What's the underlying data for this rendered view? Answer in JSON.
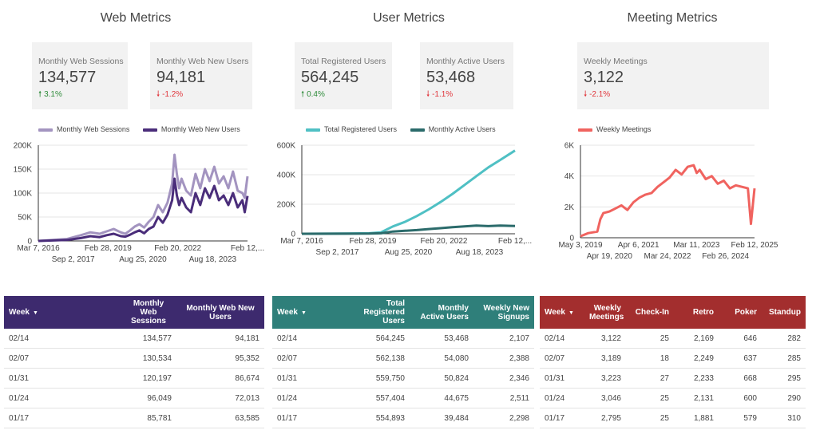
{
  "sections": {
    "web": {
      "title": "Web Metrics",
      "cards": [
        {
          "label": "Monthly Web Sessions",
          "value": "134,577",
          "delta": "3.1%",
          "dir": "up"
        },
        {
          "label": "Monthly Web New Users",
          "value": "94,181",
          "delta": "-1.2%",
          "dir": "down"
        }
      ],
      "legend": [
        "Monthly Web Sessions",
        "Monthly Web New Users"
      ]
    },
    "user": {
      "title": "User Metrics",
      "cards": [
        {
          "label": "Total Registered Users",
          "value": "564,245",
          "delta": "0.4%",
          "dir": "up"
        },
        {
          "label": "Monthly Active Users",
          "value": "53,468",
          "delta": "-1.1%",
          "dir": "down"
        }
      ],
      "legend": [
        "Total Registered Users",
        "Monthly Active Users"
      ]
    },
    "meeting": {
      "title": "Meeting Metrics",
      "cards": [
        {
          "label": "Weekly Meetings",
          "value": "3,122",
          "delta": "-2.1%",
          "dir": "down"
        }
      ],
      "legend": [
        "Weekly Meetings"
      ]
    }
  },
  "colors": {
    "web_sessions": "#a394c0",
    "web_new_users": "#4a2d7a",
    "registered": "#4fc0c4",
    "active": "#2b6b6b",
    "meetings": "#f0635f",
    "web_header": "#3d2a6e",
    "user_header": "#2f7f7a",
    "meeting_header": "#a32e2e"
  },
  "chart_data": [
    {
      "type": "line",
      "ylim": [
        0,
        200000
      ],
      "yticks": [
        "0",
        "50K",
        "100K",
        "150K",
        "200K"
      ],
      "xtick_top": [
        "Mar 7, 2016",
        "Feb 28, 2019",
        "Feb 20, 2022",
        "Feb 12,..."
      ],
      "xtick_bottom": [
        "Sep 2, 2017",
        "Aug 25, 2020",
        "Aug 18, 2023"
      ],
      "x_start": 2016.18,
      "x_end": 2025.12,
      "series": [
        {
          "name": "Monthly Web Sessions",
          "x": [
            2016.18,
            2016.8,
            2017.4,
            2017.7,
            2018.0,
            2018.4,
            2018.8,
            2019.1,
            2019.4,
            2019.7,
            2019.9,
            2020.1,
            2020.3,
            2020.5,
            2020.7,
            2020.9,
            2021.1,
            2021.3,
            2021.5,
            2021.7,
            2021.9,
            2022.0,
            2022.1,
            2022.2,
            2022.3,
            2022.5,
            2022.7,
            2022.9,
            2023.1,
            2023.3,
            2023.5,
            2023.7,
            2023.9,
            2024.1,
            2024.3,
            2024.5,
            2024.7,
            2024.9,
            2025.0,
            2025.12
          ],
          "y": [
            0,
            2000,
            4000,
            8000,
            12000,
            18000,
            15000,
            20000,
            25000,
            18000,
            15000,
            22000,
            30000,
            35000,
            28000,
            40000,
            50000,
            75000,
            60000,
            80000,
            120000,
            180000,
            140000,
            110000,
            130000,
            105000,
            95000,
            140000,
            110000,
            150000,
            125000,
            155000,
            120000,
            135000,
            110000,
            145000,
            105000,
            100000,
            90000,
            135000
          ]
        },
        {
          "name": "Monthly Web New Users",
          "x": [
            2016.18,
            2016.8,
            2017.4,
            2017.7,
            2018.0,
            2018.4,
            2018.8,
            2019.1,
            2019.4,
            2019.7,
            2019.9,
            2020.1,
            2020.3,
            2020.5,
            2020.7,
            2020.9,
            2021.1,
            2021.3,
            2021.5,
            2021.7,
            2021.9,
            2022.0,
            2022.1,
            2022.2,
            2022.3,
            2022.5,
            2022.7,
            2022.9,
            2023.1,
            2023.3,
            2023.5,
            2023.7,
            2023.9,
            2024.1,
            2024.3,
            2024.5,
            2024.7,
            2024.9,
            2025.0,
            2025.12
          ],
          "y": [
            0,
            1000,
            2000,
            4000,
            6000,
            10000,
            8000,
            12000,
            15000,
            10000,
            9000,
            13000,
            18000,
            22000,
            16000,
            25000,
            30000,
            50000,
            38000,
            55000,
            85000,
            130000,
            95000,
            75000,
            90000,
            70000,
            60000,
            100000,
            75000,
            110000,
            90000,
            115000,
            85000,
            95000,
            75000,
            100000,
            70000,
            85000,
            60000,
            94000
          ]
        }
      ]
    },
    {
      "type": "line",
      "ylim": [
        0,
        600000
      ],
      "yticks": [
        "0",
        "200K",
        "400K",
        "600K"
      ],
      "xtick_top": [
        "Mar 7, 2016",
        "Feb 28, 2019",
        "Feb 20, 2022",
        "Feb 12,..."
      ],
      "xtick_bottom": [
        "Sep 2, 2017",
        "Aug 25, 2020",
        "Aug 18, 2023"
      ],
      "x_start": 2016.18,
      "x_end": 2025.12,
      "series": [
        {
          "name": "Total Registered Users",
          "x": [
            2016.18,
            2018.0,
            2019.0,
            2019.5,
            2020.0,
            2020.5,
            2021.0,
            2021.5,
            2022.0,
            2022.5,
            2023.0,
            2023.5,
            2024.0,
            2024.5,
            2025.12
          ],
          "y": [
            0,
            1000,
            3000,
            10000,
            50000,
            80000,
            120000,
            165000,
            215000,
            270000,
            330000,
            390000,
            450000,
            500000,
            564000
          ]
        },
        {
          "name": "Monthly Active Users",
          "x": [
            2016.18,
            2018.0,
            2019.0,
            2019.5,
            2020.0,
            2020.5,
            2021.0,
            2021.5,
            2022.0,
            2022.5,
            2023.0,
            2023.5,
            2024.0,
            2024.5,
            2025.12
          ],
          "y": [
            0,
            500,
            1000,
            3000,
            15000,
            20000,
            25000,
            32000,
            38000,
            45000,
            50000,
            55000,
            52000,
            55000,
            53000
          ]
        }
      ]
    },
    {
      "type": "line",
      "ylim": [
        0,
        6000
      ],
      "yticks": [
        "0",
        "2K",
        "4K",
        "6K"
      ],
      "xtick_top": [
        "May 3, 2019",
        "Apr 6, 2021",
        "Mar 11, 2023",
        "Feb 12, 2025"
      ],
      "xtick_bottom": [
        "Apr 19, 2020",
        "Mar 24, 2022",
        "Feb 26, 2024"
      ],
      "x_start": 2019.34,
      "x_end": 2025.12,
      "series": [
        {
          "name": "Weekly Meetings",
          "x": [
            2019.34,
            2019.6,
            2019.9,
            2020.0,
            2020.1,
            2020.3,
            2020.5,
            2020.7,
            2020.9,
            2021.1,
            2021.3,
            2021.5,
            2021.7,
            2021.9,
            2022.1,
            2022.3,
            2022.5,
            2022.7,
            2022.9,
            2023.1,
            2023.2,
            2023.3,
            2023.5,
            2023.7,
            2023.9,
            2024.1,
            2024.3,
            2024.5,
            2024.7,
            2024.9,
            2025.0,
            2025.12
          ],
          "y": [
            100,
            300,
            400,
            1200,
            1600,
            1700,
            1900,
            2100,
            1800,
            2300,
            2600,
            2800,
            2900,
            3300,
            3600,
            3900,
            4400,
            4100,
            4600,
            4700,
            4200,
            4400,
            3800,
            4000,
            3500,
            3700,
            3200,
            3400,
            3300,
            3200,
            900,
            3200
          ]
        }
      ]
    }
  ],
  "tables": {
    "web": {
      "headers": [
        "Week",
        "Monthly Web Sessions",
        "Monthly Web New Users"
      ],
      "rows": [
        [
          "02/14",
          "134,577",
          "94,181"
        ],
        [
          "02/07",
          "130,534",
          "95,352"
        ],
        [
          "01/31",
          "120,197",
          "86,674"
        ],
        [
          "01/24",
          "96,049",
          "72,013"
        ],
        [
          "01/17",
          "85,781",
          "63,585"
        ]
      ]
    },
    "user": {
      "headers": [
        "Week",
        "Total Registered Users",
        "Monthly Active Users",
        "Weekly New Signups"
      ],
      "rows": [
        [
          "02/14",
          "564,245",
          "53,468",
          "2,107"
        ],
        [
          "02/07",
          "562,138",
          "54,080",
          "2,388"
        ],
        [
          "01/31",
          "559,750",
          "50,824",
          "2,346"
        ],
        [
          "01/24",
          "557,404",
          "44,675",
          "2,511"
        ],
        [
          "01/17",
          "554,893",
          "39,484",
          "2,298"
        ]
      ]
    },
    "meeting": {
      "headers": [
        "Week",
        "Weekly Meetings",
        "Check-In",
        "Retro",
        "Poker",
        "Standup"
      ],
      "rows": [
        [
          "02/14",
          "3,122",
          "25",
          "2,169",
          "646",
          "282"
        ],
        [
          "02/07",
          "3,189",
          "18",
          "2,249",
          "637",
          "285"
        ],
        [
          "01/31",
          "3,223",
          "27",
          "2,233",
          "668",
          "295"
        ],
        [
          "01/24",
          "3,046",
          "25",
          "2,131",
          "600",
          "290"
        ],
        [
          "01/17",
          "2,795",
          "25",
          "1,881",
          "579",
          "310"
        ]
      ]
    }
  }
}
